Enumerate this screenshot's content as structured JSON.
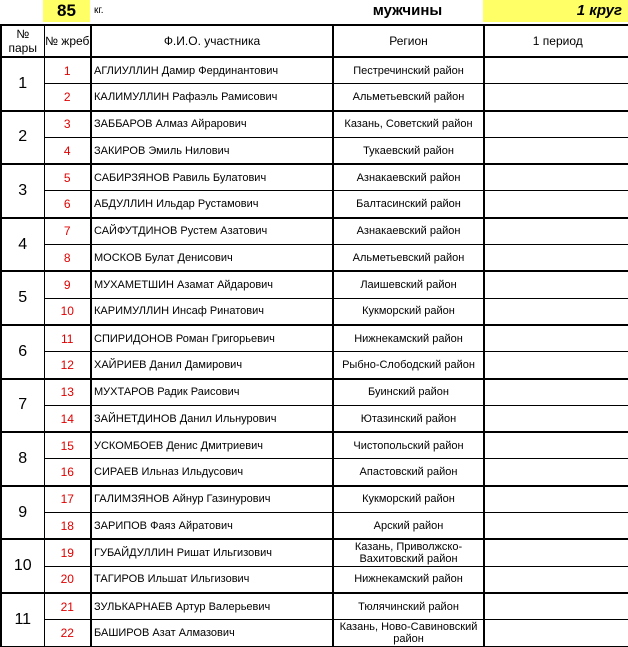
{
  "header": {
    "weight": "85",
    "unit": "кг.",
    "gender": "мужчины",
    "round": "1 круг"
  },
  "columns": {
    "pair": "№ пары",
    "draw": "№ жреб",
    "name": "Ф.И.О. участника",
    "region": "Регион",
    "period": "1 период"
  },
  "colors": {
    "highlight": "#ffff66",
    "draw_number": "#e00000"
  },
  "pairs": [
    {
      "pair": "1",
      "athletes": [
        {
          "draw": "1",
          "name": "АГЛИУЛЛИН Дамир Фердинантович",
          "region": "Пестречинский район"
        },
        {
          "draw": "2",
          "name": "КАЛИМУЛЛИН Рафаэль Рамисович",
          "region": "Альметьевский район"
        }
      ]
    },
    {
      "pair": "2",
      "athletes": [
        {
          "draw": "3",
          "name": "ЗАББАРОВ Алмаз Айрарович",
          "region": "Казань, Советский район"
        },
        {
          "draw": "4",
          "name": "ЗАКИРОВ Эмиль Нилович",
          "region": "Тукаевский район"
        }
      ]
    },
    {
      "pair": "3",
      "athletes": [
        {
          "draw": "5",
          "name": "САБИРЗЯНОВ Равиль Булатович",
          "region": "Азнакаевский район"
        },
        {
          "draw": "6",
          "name": "АБДУЛЛИН Ильдар Рустамович",
          "region": "Балтасинский район"
        }
      ]
    },
    {
      "pair": "4",
      "athletes": [
        {
          "draw": "7",
          "name": "САЙФУТДИНОВ Рустем Азатович",
          "region": "Азнакаевский район"
        },
        {
          "draw": "8",
          "name": "МОСКОВ Булат Денисович",
          "region": "Альметьевский район"
        }
      ]
    },
    {
      "pair": "5",
      "athletes": [
        {
          "draw": "9",
          "name": "МУХАМЕТШИН Азамат Айдарович",
          "region": "Лаишевский район"
        },
        {
          "draw": "10",
          "name": "КАРИМУЛЛИН Инсаф Ринатович",
          "region": "Кукморский район"
        }
      ]
    },
    {
      "pair": "6",
      "athletes": [
        {
          "draw": "11",
          "name": "СПИРИДОНОВ Роман Григорьевич",
          "region": "Нижнекамский район"
        },
        {
          "draw": "12",
          "name": "ХАЙРИЕВ Данил Дамирович",
          "region": "Рыбно-Слободский район"
        }
      ]
    },
    {
      "pair": "7",
      "athletes": [
        {
          "draw": "13",
          "name": "МУХТАРОВ Радик Раисович",
          "region": "Буинский район"
        },
        {
          "draw": "14",
          "name": "ЗАЙНЕТДИНОВ Данил Ильнурович",
          "region": "Ютазинский район"
        }
      ]
    },
    {
      "pair": "8",
      "athletes": [
        {
          "draw": "15",
          "name": "УСКОМБОЕВ Денис Дмитриевич",
          "region": "Чистопольский район"
        },
        {
          "draw": "16",
          "name": "СИРАЕВ Ильназ Ильдусович",
          "region": "Апастовский район"
        }
      ]
    },
    {
      "pair": "9",
      "athletes": [
        {
          "draw": "17",
          "name": "ГАЛИМЗЯНОВ Айнур Газинурович",
          "region": "Кукморский район"
        },
        {
          "draw": "18",
          "name": "ЗАРИПОВ Фаяз Айратович",
          "region": "Арский район"
        }
      ]
    },
    {
      "pair": "10",
      "athletes": [
        {
          "draw": "19",
          "name": "ГУБАЙДУЛЛИН Ришат Ильгизович",
          "region": "Казань, Приволжско-Вахитовский район"
        },
        {
          "draw": "20",
          "name": "ТАГИРОВ Ильшат Ильгизович",
          "region": "Нижнекамский район"
        }
      ]
    },
    {
      "pair": "11",
      "athletes": [
        {
          "draw": "21",
          "name": "ЗУЛЬКАРНАЕВ Артур Валерьевич",
          "region": "Тюлячинский район"
        },
        {
          "draw": "22",
          "name": "БАШИРОВ Азат Алмазович",
          "region": "Казань, Ново-Савиновский район"
        }
      ]
    }
  ]
}
